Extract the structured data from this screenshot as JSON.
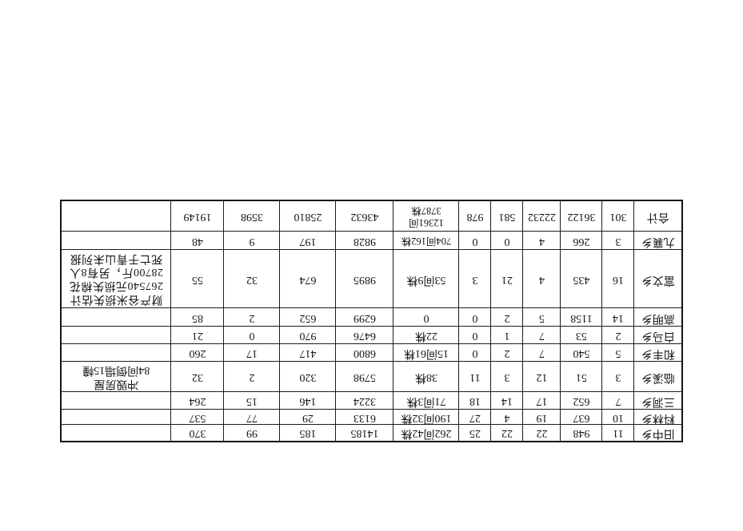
{
  "page": {
    "background_color": "#ffffff",
    "orientation_note": "table content appears rotated 180 degrees on the scanned page"
  },
  "table": {
    "rows": [
      {
        "name": "旧中乡",
        "values": [
          "11",
          "948",
          "22",
          "22",
          "25",
          "262间42株",
          "14185",
          "185",
          "99",
          "370"
        ],
        "note": []
      },
      {
        "name": "料林乡",
        "values": [
          "10",
          "637",
          "19",
          "4",
          "27",
          "190间32株",
          "6133",
          "29",
          "77",
          "537"
        ],
        "note": []
      },
      {
        "name": "三洞乡",
        "values": [
          "7",
          "652",
          "17",
          "14",
          "18",
          "71间3株",
          "3224",
          "146",
          "15",
          "264"
        ],
        "note": []
      },
      {
        "name": "临溪乡",
        "values": [
          "3",
          "51",
          "12",
          "3",
          "11",
          "38株",
          "5798",
          "320",
          "2",
          "32"
        ],
        "note": [
          "冲毁房屋",
          "84间倒塌15幢"
        ]
      },
      {
        "name": "和丰乡",
        "values": [
          "5",
          "540",
          "7",
          "2",
          "0",
          "15间61株",
          "6800",
          "417",
          "17",
          "260"
        ],
        "note": []
      },
      {
        "name": "白马乡",
        "values": [
          "2",
          "53",
          "7",
          "1",
          "0",
          "22株",
          "6476",
          "970",
          "0",
          "21"
        ],
        "note": []
      },
      {
        "name": "高明乡",
        "values": [
          "14",
          "1158",
          "5",
          "2",
          "0",
          "0",
          "6299",
          "652",
          "2",
          "85"
        ],
        "note": []
      },
      {
        "name": "富文乡",
        "values": [
          "16",
          "435",
          "4",
          "21",
          "3",
          "53间9株",
          "9895",
          "674",
          "32",
          "55"
        ],
        "note": [
          "财产谷米损失估计",
          "267540元损失棉花",
          "28700斤，另有8人",
          "死亡于青山未列报"
        ]
      },
      {
        "name": "九襄乡",
        "values": [
          "3",
          "266",
          "4",
          "0",
          "0",
          [
            "704间162株"
          ],
          "9828",
          "197",
          "9",
          "48"
        ],
        "note": []
      },
      {
        "name": "合计",
        "values": [
          "301",
          "36122",
          "22232",
          "581",
          "978",
          [
            "12361间",
            "3787株"
          ],
          "43632",
          "25810",
          "3598",
          "19149"
        ],
        "note": []
      }
    ]
  }
}
